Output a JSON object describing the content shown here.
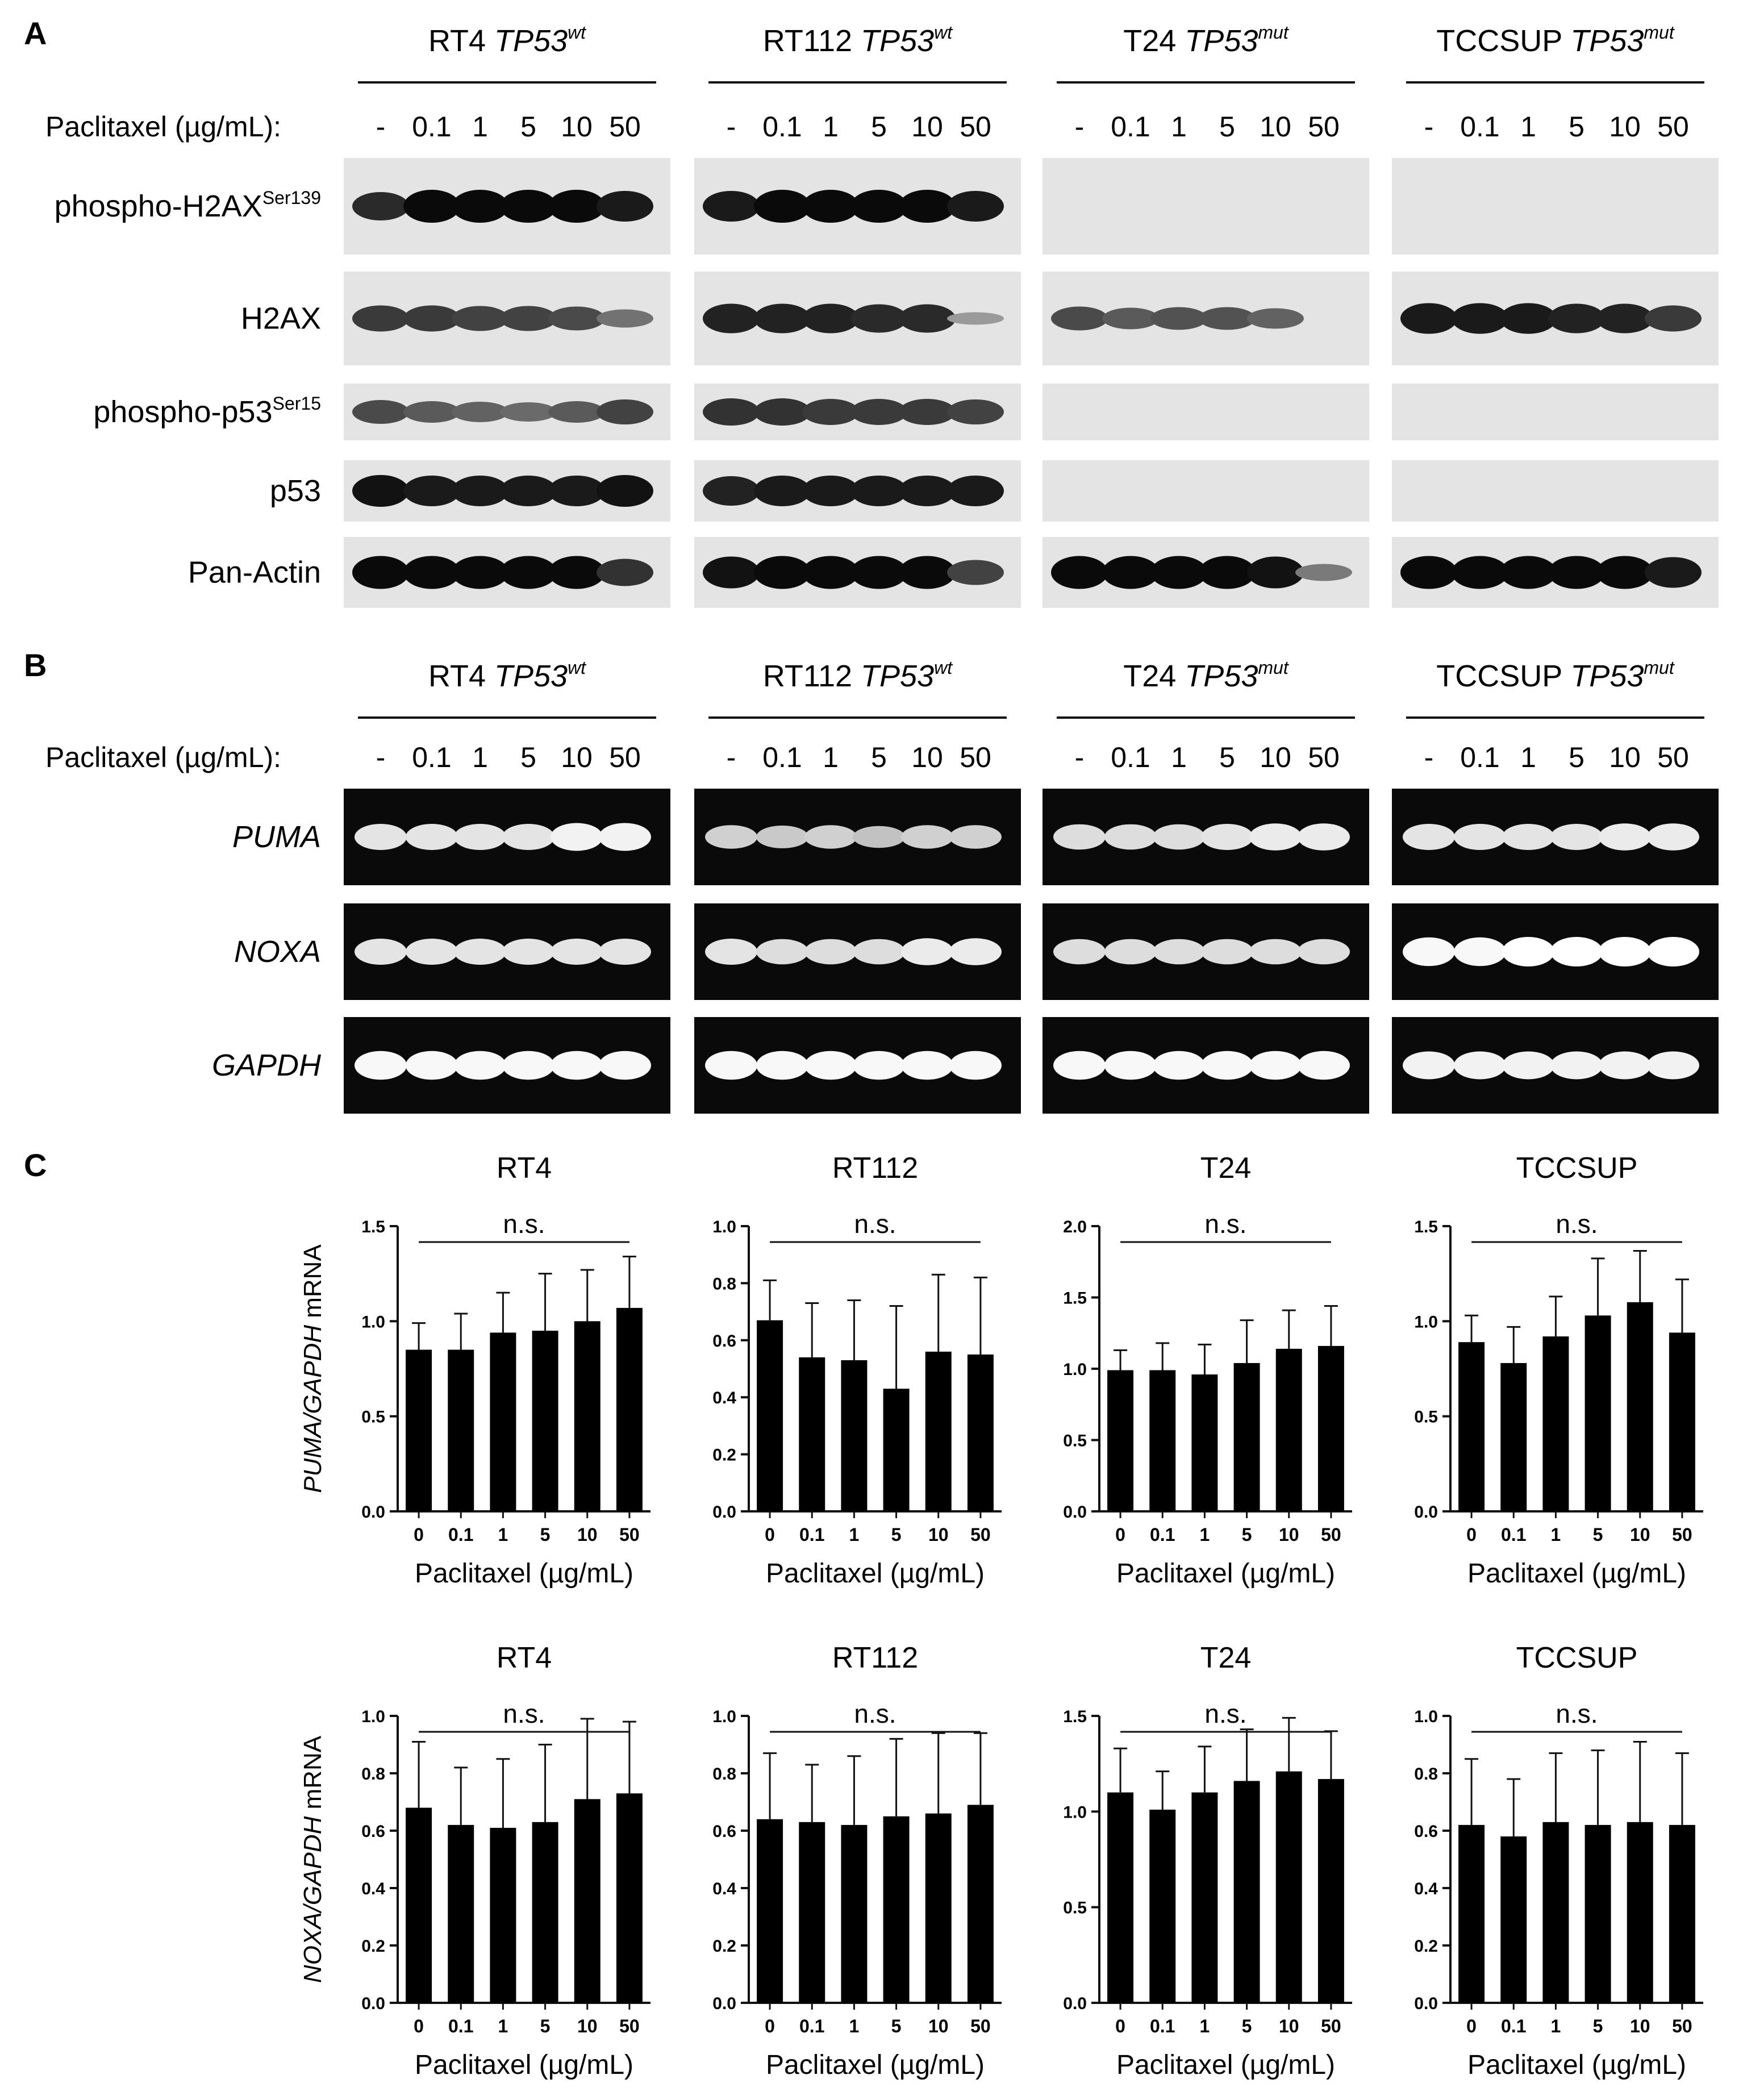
{
  "panels": {
    "a": "A",
    "b": "B",
    "c": "C"
  },
  "cell_lines": [
    {
      "name": "RT4",
      "status": "TP53",
      "sup": "wt"
    },
    {
      "name": "RT112",
      "status": "TP53",
      "sup": "wt"
    },
    {
      "name": "T24",
      "status": "TP53",
      "sup": "mut"
    },
    {
      "name": "TCCSUP",
      "status": "TP53",
      "sup": "mut"
    }
  ],
  "treatment_label": "Paclitaxel (µg/mL):",
  "doses": [
    "-",
    "0.1",
    "1",
    "5",
    "10",
    "50"
  ],
  "western_rows": [
    {
      "label": "phospho-H2AX",
      "sup": "Ser139"
    },
    {
      "label": "H2AX",
      "sup": ""
    },
    {
      "label": "phospho-p53",
      "sup": "Ser15"
    },
    {
      "label": "p53",
      "sup": ""
    },
    {
      "label": "Pan-Actin",
      "sup": ""
    }
  ],
  "pcr_rows": [
    "PUMA",
    "NOXA",
    "GAPDH"
  ],
  "chart_common": {
    "x_tick_labels": [
      "0",
      "0.1",
      "1",
      "5",
      "10",
      "50"
    ],
    "xlabel": "Paclitaxel (µg/mL)",
    "significance": "n.s.",
    "ylabel_puma": {
      "italic": "PUMA/GAPDH",
      "rest": " mRNA"
    },
    "ylabel_noxa": {
      "italic": "NOXA/GAPDH",
      "rest": " mRNA"
    }
  },
  "chart_data": [
    {
      "type": "bar",
      "title": "RT4",
      "ylabel": "PUMA/GAPDH mRNA",
      "xlabel": "Paclitaxel (µg/mL)",
      "categories": [
        "0",
        "0.1",
        "1",
        "5",
        "10",
        "50"
      ],
      "ylim": [
        0,
        1.5
      ],
      "yticks": [
        "0.0",
        "0.5",
        "1.0",
        "1.5"
      ],
      "values": [
        0.85,
        0.85,
        0.94,
        0.95,
        1.0,
        1.07
      ],
      "errors": [
        0.14,
        0.19,
        0.21,
        0.3,
        0.27,
        0.27
      ],
      "annotation": "n.s."
    },
    {
      "type": "bar",
      "title": "RT112",
      "ylabel": "PUMA/GAPDH mRNA",
      "xlabel": "Paclitaxel (µg/mL)",
      "categories": [
        "0",
        "0.1",
        "1",
        "5",
        "10",
        "50"
      ],
      "ylim": [
        0,
        1.0
      ],
      "yticks": [
        "0.0",
        "0.2",
        "0.4",
        "0.6",
        "0.8",
        "1.0"
      ],
      "values": [
        0.67,
        0.54,
        0.53,
        0.43,
        0.56,
        0.55
      ],
      "errors": [
        0.14,
        0.19,
        0.21,
        0.29,
        0.27,
        0.27
      ],
      "annotation": "n.s."
    },
    {
      "type": "bar",
      "title": "T24",
      "ylabel": "PUMA/GAPDH mRNA",
      "xlabel": "Paclitaxel (µg/mL)",
      "categories": [
        "0",
        "0.1",
        "1",
        "5",
        "10",
        "50"
      ],
      "ylim": [
        0,
        2.0
      ],
      "yticks": [
        "0.0",
        "0.5",
        "1.0",
        "1.5",
        "2.0"
      ],
      "values": [
        0.99,
        0.99,
        0.96,
        1.04,
        1.14,
        1.16
      ],
      "errors": [
        0.14,
        0.19,
        0.21,
        0.3,
        0.27,
        0.28
      ],
      "annotation": "n.s."
    },
    {
      "type": "bar",
      "title": "TCCSUP",
      "ylabel": "PUMA/GAPDH mRNA",
      "xlabel": "Paclitaxel (µg/mL)",
      "categories": [
        "0",
        "0.1",
        "1",
        "5",
        "10",
        "50"
      ],
      "ylim": [
        0,
        1.5
      ],
      "yticks": [
        "0.0",
        "0.5",
        "1.0",
        "1.5"
      ],
      "values": [
        0.89,
        0.78,
        0.92,
        1.03,
        1.1,
        0.94
      ],
      "errors": [
        0.14,
        0.19,
        0.21,
        0.3,
        0.27,
        0.28
      ],
      "annotation": "n.s."
    },
    {
      "type": "bar",
      "title": "RT4",
      "ylabel": "NOXA/GAPDH mRNA",
      "xlabel": "Paclitaxel (µg/mL)",
      "categories": [
        "0",
        "0.1",
        "1",
        "5",
        "10",
        "50"
      ],
      "ylim": [
        0,
        1.0
      ],
      "yticks": [
        "0.0",
        "0.2",
        "0.4",
        "0.6",
        "0.8",
        "1.0"
      ],
      "values": [
        0.68,
        0.62,
        0.61,
        0.63,
        0.71,
        0.73
      ],
      "errors": [
        0.23,
        0.2,
        0.24,
        0.27,
        0.28,
        0.25
      ],
      "annotation": "n.s."
    },
    {
      "type": "bar",
      "title": "RT112",
      "ylabel": "NOXA/GAPDH mRNA",
      "xlabel": "Paclitaxel (µg/mL)",
      "categories": [
        "0",
        "0.1",
        "1",
        "5",
        "10",
        "50"
      ],
      "ylim": [
        0,
        1.0
      ],
      "yticks": [
        "0.0",
        "0.2",
        "0.4",
        "0.6",
        "0.8",
        "1.0"
      ],
      "values": [
        0.64,
        0.63,
        0.62,
        0.65,
        0.66,
        0.69
      ],
      "errors": [
        0.23,
        0.2,
        0.24,
        0.27,
        0.28,
        0.25
      ],
      "annotation": "n.s."
    },
    {
      "type": "bar",
      "title": "T24",
      "ylabel": "NOXA/GAPDH mRNA",
      "xlabel": "Paclitaxel (µg/mL)",
      "categories": [
        "0",
        "0.1",
        "1",
        "5",
        "10",
        "50"
      ],
      "ylim": [
        0,
        1.5
      ],
      "yticks": [
        "0.0",
        "0.5",
        "1.0",
        "1.5"
      ],
      "values": [
        1.1,
        1.01,
        1.1,
        1.16,
        1.21,
        1.17
      ],
      "errors": [
        0.23,
        0.2,
        0.24,
        0.27,
        0.28,
        0.25
      ],
      "annotation": "n.s."
    },
    {
      "type": "bar",
      "title": "TCCSUP",
      "ylabel": "NOXA/GAPDH mRNA",
      "xlabel": "Paclitaxel (µg/mL)",
      "categories": [
        "0",
        "0.1",
        "1",
        "5",
        "10",
        "50"
      ],
      "ylim": [
        0,
        1.0
      ],
      "yticks": [
        "0.0",
        "0.2",
        "0.4",
        "0.6",
        "0.8",
        "1.0"
      ],
      "values": [
        0.62,
        0.58,
        0.63,
        0.62,
        0.63,
        0.62
      ],
      "errors": [
        0.23,
        0.2,
        0.24,
        0.26,
        0.28,
        0.25
      ],
      "annotation": "n.s."
    }
  ],
  "blot_intensity": {
    "western": [
      [
        [
          0.8,
          1,
          1,
          1,
          1,
          0.9
        ],
        [
          0.9,
          1,
          1,
          1,
          1,
          0.9
        ],
        [
          0,
          0,
          0,
          0,
          0,
          0
        ],
        [
          0,
          0,
          0,
          0,
          0,
          0
        ]
      ],
      [
        [
          0.7,
          0.7,
          0.65,
          0.65,
          0.6,
          0.35
        ],
        [
          0.85,
          0.85,
          0.85,
          0.8,
          0.8,
          0.1
        ],
        [
          0.6,
          0.5,
          0.55,
          0.55,
          0.45,
          0
        ],
        [
          0.9,
          0.9,
          0.9,
          0.85,
          0.85,
          0.7
        ]
      ],
      [
        [
          0.6,
          0.5,
          0.45,
          0.4,
          0.5,
          0.65
        ],
        [
          0.75,
          0.75,
          0.7,
          0.7,
          0.7,
          0.65
        ],
        [
          0,
          0,
          0,
          0,
          0,
          0
        ],
        [
          0,
          0,
          0,
          0,
          0,
          0
        ]
      ],
      [
        [
          0.95,
          0.9,
          0.9,
          0.9,
          0.9,
          0.95
        ],
        [
          0.85,
          0.9,
          0.9,
          0.9,
          0.9,
          0.9
        ],
        [
          0,
          0,
          0,
          0,
          0,
          0
        ],
        [
          0,
          0,
          0,
          0,
          0,
          0
        ]
      ],
      [
        [
          1,
          1,
          1,
          1,
          1,
          0.75
        ],
        [
          0.95,
          1,
          1,
          1,
          1,
          0.65
        ],
        [
          1,
          1,
          1,
          1,
          0.95,
          0.3
        ],
        [
          1,
          1,
          1,
          1,
          1,
          0.9
        ]
      ]
    ],
    "pcr": [
      [
        [
          0.8,
          0.8,
          0.8,
          0.8,
          0.9,
          0.9
        ],
        [
          0.65,
          0.6,
          0.65,
          0.55,
          0.65,
          0.65
        ],
        [
          0.75,
          0.75,
          0.75,
          0.8,
          0.85,
          0.85
        ],
        [
          0.8,
          0.8,
          0.8,
          0.8,
          0.85,
          0.85
        ]
      ],
      [
        [
          0.8,
          0.8,
          0.8,
          0.8,
          0.8,
          0.8
        ],
        [
          0.8,
          0.75,
          0.75,
          0.75,
          0.85,
          0.85
        ],
        [
          0.75,
          0.75,
          0.75,
          0.75,
          0.75,
          0.75
        ],
        [
          0.95,
          0.95,
          1,
          1,
          1,
          1
        ]
      ],
      [
        [
          0.95,
          0.95,
          0.95,
          0.95,
          0.95,
          0.95
        ],
        [
          0.95,
          0.95,
          0.95,
          0.95,
          0.95,
          0.95
        ],
        [
          0.95,
          0.95,
          0.95,
          0.95,
          0.95,
          0.95
        ],
        [
          0.9,
          0.9,
          0.9,
          0.9,
          0.9,
          0.9
        ]
      ]
    ]
  }
}
